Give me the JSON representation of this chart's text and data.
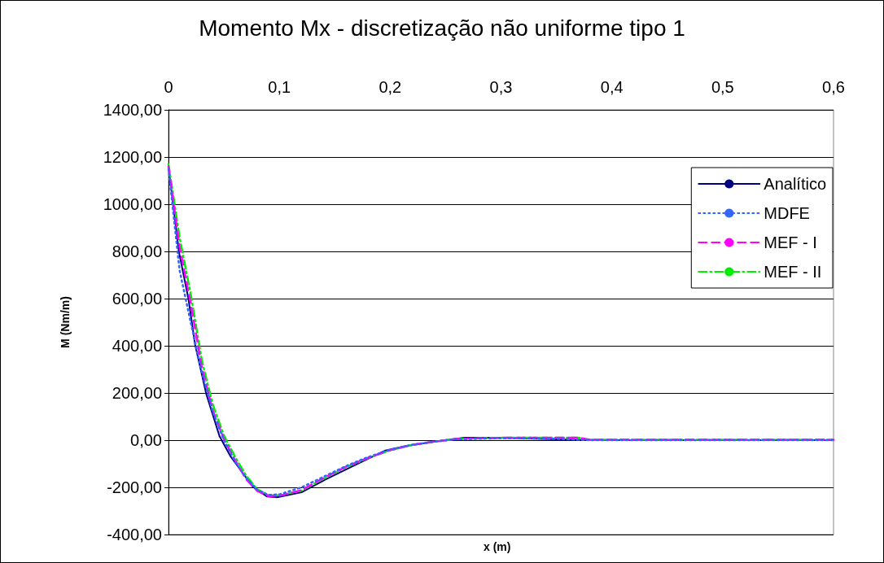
{
  "chart_data": {
    "type": "line",
    "title": "Momento Mx - discretização não uniforme tipo 1",
    "xlabel": "x (m)",
    "ylabel": "M (Nm/m)",
    "xlim": [
      0,
      0.6
    ],
    "xticks": [
      {
        "value": 0,
        "label": "0"
      },
      {
        "value": 0.1,
        "label": "0,1"
      },
      {
        "value": 0.2,
        "label": "0,2"
      },
      {
        "value": 0.3,
        "label": "0,3"
      },
      {
        "value": 0.4,
        "label": "0,4"
      },
      {
        "value": 0.5,
        "label": "0,5"
      },
      {
        "value": 0.6,
        "label": "0,6"
      }
    ],
    "ylim": [
      -400,
      1400
    ],
    "yticks": [
      {
        "value": -400,
        "label": "-400,00"
      },
      {
        "value": -200,
        "label": "-200,00"
      },
      {
        "value": 0,
        "label": "0,00"
      },
      {
        "value": 200,
        "label": "200,00"
      },
      {
        "value": 400,
        "label": "400,00"
      },
      {
        "value": 600,
        "label": "600,00"
      },
      {
        "value": 800,
        "label": "800,00"
      },
      {
        "value": 1000,
        "label": "1000,00"
      },
      {
        "value": 1200,
        "label": "1200,00"
      },
      {
        "value": 1400,
        "label": "1400,00"
      }
    ],
    "grid": "y",
    "legend": "top right",
    "marker": "none",
    "series": [
      {
        "name": "Analítico",
        "color": "#000080",
        "line_style": "solid",
        "x": [
          0,
          0.0095,
          0.018,
          0.024,
          0.034,
          0.046,
          0.056,
          0.076,
          0.089,
          0.098,
          0.12,
          0.142,
          0.166,
          0.195,
          0.215,
          0.239,
          0.254,
          0.267,
          0.3,
          0.357,
          0.379,
          0.45,
          0.5,
          0.6
        ],
        "values": [
          1160,
          796,
          599,
          405,
          197,
          17,
          -69,
          -197,
          -239,
          -242,
          -221,
          -166,
          -111,
          -45,
          -24,
          -7,
          3,
          10,
          10,
          3,
          0,
          0,
          0,
          0
        ]
      },
      {
        "name": "MDFE",
        "color": "#3366ff",
        "line_style": "dotted",
        "x": [
          0,
          0.01,
          0.02,
          0.03,
          0.04,
          0.05,
          0.06,
          0.07,
          0.08,
          0.09,
          0.1,
          0.12,
          0.14,
          0.16,
          0.18,
          0.2,
          0.22,
          0.24,
          0.26,
          0.3,
          0.35,
          0.38,
          0.45,
          0.5,
          0.6
        ],
        "values": [
          1150,
          720,
          500,
          290,
          120,
          0,
          -90,
          -160,
          -210,
          -232,
          -230,
          -200,
          -155,
          -110,
          -72,
          -40,
          -20,
          -6,
          4,
          8,
          6,
          0,
          0,
          0,
          0
        ]
      },
      {
        "name": "MEF - I",
        "color": "#ff00ff",
        "line_style": "dashed",
        "x": [
          0,
          0.01,
          0.02,
          0.03,
          0.04,
          0.05,
          0.06,
          0.07,
          0.08,
          0.09,
          0.1,
          0.12,
          0.14,
          0.16,
          0.18,
          0.2,
          0.22,
          0.24,
          0.26,
          0.3,
          0.35,
          0.37,
          0.38,
          0.45,
          0.5,
          0.6
        ],
        "values": [
          1160,
          820,
          580,
          310,
          125,
          5,
          -85,
          -165,
          -215,
          -237,
          -236,
          -212,
          -160,
          -113,
          -75,
          -42,
          -20,
          -6,
          5,
          10,
          10,
          10,
          2,
          2,
          2,
          2
        ]
      },
      {
        "name": "MEF - II",
        "color": "#00ee00",
        "line_style": "dashdot",
        "x": [
          0,
          0.01,
          0.02,
          0.03,
          0.04,
          0.05,
          0.06,
          0.07,
          0.08,
          0.09,
          0.1,
          0.12,
          0.14,
          0.16,
          0.18,
          0.2,
          0.22,
          0.24,
          0.26,
          0.3,
          0.35,
          0.37,
          0.38,
          0.45,
          0.5,
          0.6
        ],
        "values": [
          1170,
          860,
          620,
          340,
          150,
          20,
          -70,
          -150,
          -208,
          -233,
          -234,
          -214,
          -163,
          -115,
          -76,
          -43,
          -20,
          -6,
          5,
          10,
          10,
          10,
          2,
          2,
          2,
          2
        ]
      }
    ]
  }
}
